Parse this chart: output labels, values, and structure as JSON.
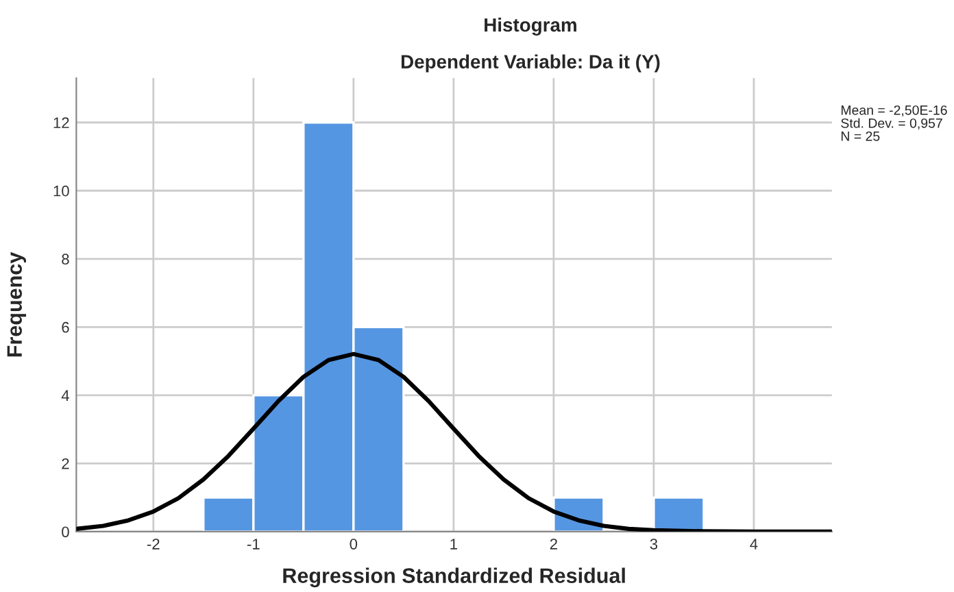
{
  "chart_data": {
    "type": "histogram",
    "title": "Histogram",
    "subtitle": "Dependent Variable: Da it (Y)",
    "xlabel": "Regression Standardized Residual",
    "ylabel": "Frequency",
    "bins": [
      -1.5,
      -1.0,
      -0.5,
      0.0,
      0.5,
      1.0,
      1.5,
      2.0,
      2.5,
      3.0,
      3.5
    ],
    "values": [
      1,
      4,
      12,
      6,
      0,
      0,
      0,
      1,
      0,
      1
    ],
    "color": "#5596e2",
    "series": [
      {
        "type": "line",
        "color": "#000000",
        "x": [
          -2.77,
          -2.5,
          -2.25,
          -2.0,
          -1.75,
          -1.5,
          -1.25,
          -1.0,
          -0.75,
          -0.5,
          -0.25,
          0.0,
          0.25,
          0.5,
          0.75,
          1.0,
          1.25,
          1.5,
          1.75,
          2.0,
          2.25,
          2.5,
          2.75,
          3.0,
          3.5,
          4.0,
          4.78
        ],
        "values": [
          0.08,
          0.17,
          0.33,
          0.59,
          0.98,
          1.53,
          2.22,
          3.02,
          3.83,
          4.54,
          5.03,
          5.21,
          5.03,
          4.54,
          3.83,
          3.02,
          2.22,
          1.53,
          0.98,
          0.59,
          0.33,
          0.17,
          0.08,
          0.04,
          0.01,
          0.0,
          0.0
        ]
      }
    ],
    "xlim": [
      -2.77,
      4.78
    ],
    "xticks": [
      -2,
      -1,
      0,
      1,
      2,
      3,
      4
    ],
    "ylim": [
      0,
      13.3
    ],
    "yticks": [
      0,
      2,
      4,
      6,
      8,
      10,
      12
    ],
    "grid": true,
    "annotations": [
      "Mean = -2,50E-16",
      "Std. Dev. = 0,957",
      "N = 25"
    ]
  }
}
